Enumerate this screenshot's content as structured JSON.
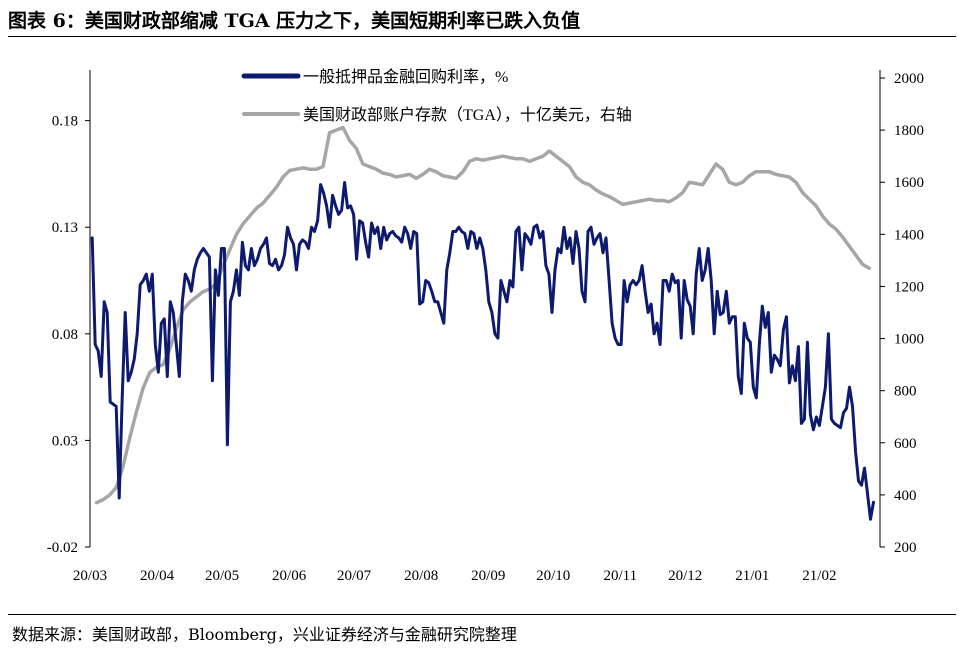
{
  "figure": {
    "title": "图表 6：美国财政部缩减 TGA 压力之下，美国短期利率已跌入负值",
    "source": "数据来源：美国财政部，Bloomberg，兴业证券经济与金融研究院整理"
  },
  "chart_data": {
    "type": "line",
    "x_tick_labels": [
      "20/03",
      "20/04",
      "20/05",
      "20/06",
      "20/07",
      "20/08",
      "20/09",
      "20/10",
      "20/11",
      "20/12",
      "21/01",
      "21/02"
    ],
    "left_axis": {
      "ylim": [
        -0.02,
        0.2
      ],
      "tick_labels": [
        "-0.02",
        "0.03",
        "0.08",
        "0.13",
        "0.18"
      ]
    },
    "right_axis": {
      "ylim": [
        200,
        2000
      ],
      "tick_labels": [
        "200",
        "400",
        "600",
        "800",
        "1000",
        "1200",
        "1400",
        "1600",
        "1800",
        "2000"
      ]
    },
    "legend": {
      "placement": "top-center"
    },
    "grid": false,
    "series": [
      {
        "name": "一般抵押品金融回购利率，%",
        "axis": "left",
        "color": "#0d1a6e",
        "x_start": "2020-03-02",
        "x_end": "2021-02-26",
        "values": [
          0.125,
          0.075,
          0.072,
          0.06,
          0.095,
          0.09,
          0.048,
          0.047,
          0.046,
          0.003,
          0.05,
          0.09,
          0.058,
          0.062,
          0.068,
          0.08,
          0.103,
          0.105,
          0.108,
          0.1,
          0.108,
          0.075,
          0.062,
          0.085,
          0.087,
          0.06,
          0.095,
          0.09,
          0.075,
          0.06,
          0.095,
          0.108,
          0.105,
          0.1,
          0.11,
          0.115,
          0.118,
          0.12,
          0.118,
          0.116,
          0.058,
          0.11,
          0.098,
          0.12,
          0.12,
          0.028,
          0.095,
          0.1,
          0.11,
          0.098,
          0.123,
          0.112,
          0.11,
          0.12,
          0.112,
          0.115,
          0.12,
          0.122,
          0.125,
          0.113,
          0.112,
          0.115,
          0.11,
          0.112,
          0.117,
          0.13,
          0.125,
          0.122,
          0.11,
          0.122,
          0.124,
          0.123,
          0.12,
          0.13,
          0.128,
          0.133,
          0.15,
          0.146,
          0.14,
          0.13,
          0.145,
          0.14,
          0.136,
          0.138,
          0.151,
          0.139,
          0.14,
          0.136,
          0.115,
          0.133,
          0.132,
          0.123,
          0.116,
          0.132,
          0.127,
          0.13,
          0.12,
          0.13,
          0.124,
          0.127,
          0.128,
          0.126,
          0.125,
          0.123,
          0.13,
          0.127,
          0.12,
          0.128,
          0.127,
          0.094,
          0.095,
          0.105,
          0.104,
          0.1,
          0.095,
          0.095,
          0.09,
          0.085,
          0.11,
          0.118,
          0.128,
          0.128,
          0.13,
          0.128,
          0.127,
          0.12,
          0.128,
          0.127,
          0.12,
          0.125,
          0.12,
          0.11,
          0.095,
          0.09,
          0.08,
          0.078,
          0.105,
          0.1,
          0.095,
          0.105,
          0.102,
          0.128,
          0.13,
          0.11,
          0.127,
          0.125,
          0.122,
          0.13,
          0.131,
          0.125,
          0.128,
          0.112,
          0.108,
          0.09,
          0.11,
          0.12,
          0.118,
          0.13,
          0.12,
          0.125,
          0.113,
          0.128,
          0.12,
          0.1,
          0.095,
          0.128,
          0.13,
          0.122,
          0.125,
          0.127,
          0.118,
          0.125,
          0.105,
          0.085,
          0.078,
          0.075,
          0.075,
          0.105,
          0.095,
          0.103,
          0.105,
          0.103,
          0.105,
          0.112,
          0.1,
          0.09,
          0.094,
          0.08,
          0.085,
          0.075,
          0.105,
          0.105,
          0.1,
          0.108,
          0.104,
          0.105,
          0.078,
          0.105,
          0.096,
          0.093,
          0.08,
          0.108,
          0.12,
          0.105,
          0.11,
          0.12,
          0.105,
          0.08,
          0.1,
          0.089,
          0.09,
          0.1,
          0.085,
          0.088,
          0.088,
          0.06,
          0.052,
          0.085,
          0.078,
          0.076,
          0.055,
          0.05,
          0.075,
          0.093,
          0.083,
          0.09,
          0.062,
          0.07,
          0.068,
          0.065,
          0.082,
          0.088,
          0.057,
          0.065,
          0.058,
          0.074,
          0.038,
          0.04,
          0.076,
          0.042,
          0.035,
          0.041,
          0.037,
          0.046,
          0.055,
          0.08,
          0.04,
          0.038,
          0.037,
          0.036,
          0.043,
          0.045,
          0.055,
          0.046,
          0.025,
          0.011,
          0.009,
          0.017,
          0.005,
          -0.007,
          0.001
        ]
      },
      {
        "name": "美国财政部账户存款（TGA），十亿美元，右轴",
        "axis": "right",
        "color": "#a6a6a6",
        "x_start": "2020-03-04",
        "x_end": "2021-02-24",
        "values": [
          370,
          382,
          400,
          430,
          510,
          620,
          720,
          810,
          870,
          890,
          900,
          960,
          1040,
          1110,
          1140,
          1160,
          1180,
          1190,
          1210,
          1280,
          1340,
          1400,
          1440,
          1470,
          1500,
          1520,
          1550,
          1580,
          1620,
          1645,
          1650,
          1655,
          1650,
          1650,
          1660,
          1790,
          1800,
          1810,
          1760,
          1730,
          1670,
          1660,
          1650,
          1635,
          1630,
          1620,
          1625,
          1630,
          1615,
          1630,
          1650,
          1640,
          1625,
          1620,
          1615,
          1640,
          1680,
          1690,
          1685,
          1690,
          1695,
          1700,
          1695,
          1690,
          1690,
          1680,
          1690,
          1700,
          1720,
          1700,
          1680,
          1660,
          1620,
          1600,
          1590,
          1570,
          1555,
          1545,
          1530,
          1515,
          1520,
          1525,
          1530,
          1535,
          1530,
          1530,
          1525,
          1540,
          1560,
          1600,
          1595,
          1590,
          1630,
          1670,
          1650,
          1600,
          1590,
          1600,
          1625,
          1640,
          1640,
          1640,
          1630,
          1625,
          1620,
          1600,
          1560,
          1535,
          1510,
          1470,
          1440,
          1420,
          1390,
          1355,
          1320,
          1285,
          1270
        ]
      }
    ]
  }
}
